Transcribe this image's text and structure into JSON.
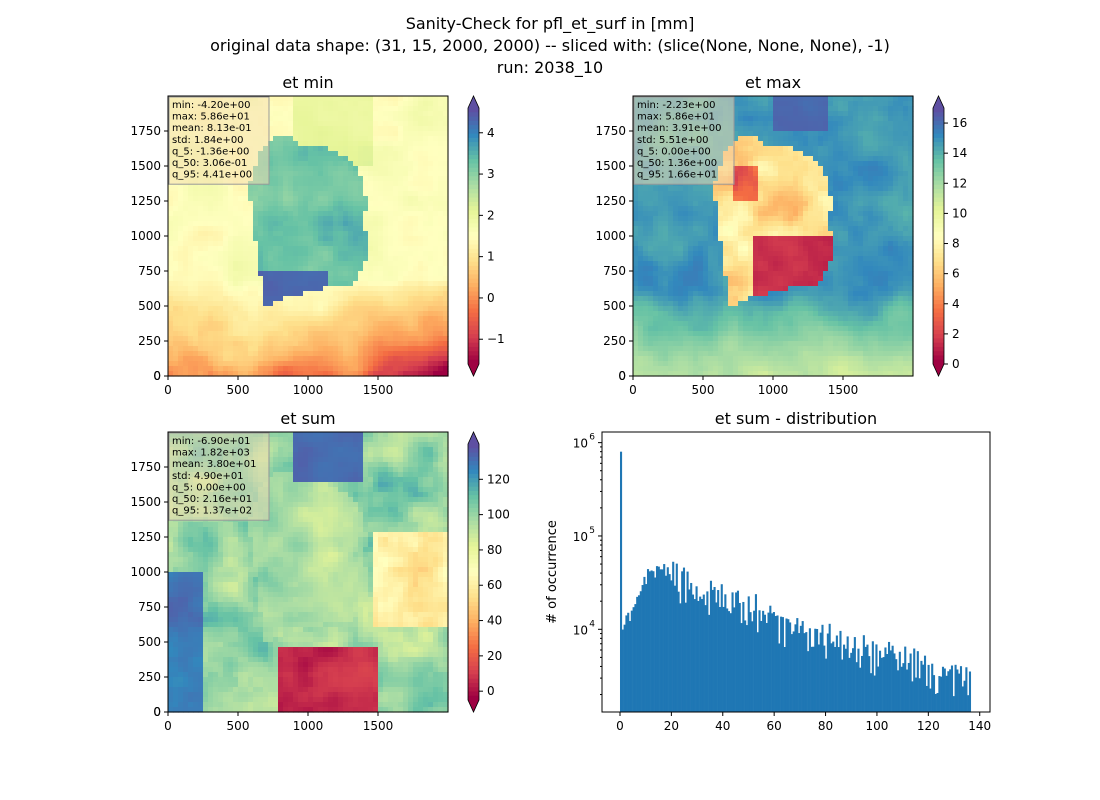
{
  "figure": {
    "title_lines": [
      "Sanity-Check for pfl_et_surf in [mm]",
      "original data shape: (31, 15, 2000, 2000) -- sliced with: (slice(None, None, None), -1)",
      "run: 2038_10"
    ]
  },
  "colors": {
    "hist_bar": "#1f77b4",
    "stats_box_fill": "#f5deb3",
    "spectral": [
      "#9e0142",
      "#d53e4f",
      "#f46d43",
      "#fdae61",
      "#fee08b",
      "#ffffbf",
      "#e6f598",
      "#abdda4",
      "#66c2a5",
      "#3288bd",
      "#5e4fa2"
    ]
  },
  "chart_data": [
    {
      "type": "heatmap",
      "title": "et min",
      "colormap": "Spectral",
      "xlim": [
        0,
        2000
      ],
      "ylim": [
        0,
        2000
      ],
      "xticks": [
        0,
        500,
        1000,
        1500
      ],
      "yticks": [
        0,
        250,
        500,
        750,
        1000,
        1250,
        1500,
        1750
      ],
      "clim": [
        -1.6,
        4.6
      ],
      "colorbar_ticks": [
        -1,
        0,
        1,
        2,
        3,
        4
      ],
      "colorbar_extend": "both",
      "stats": [
        "min: -4.20e+00",
        "max: 5.86e+01",
        "mean: 8.13e-01",
        "std: 1.84e+00",
        "q_5: -1.36e+00",
        "q_50: 3.06e-01",
        "q_95: 4.41e+00"
      ]
    },
    {
      "type": "heatmap",
      "title": "et max",
      "colormap": "Spectral",
      "xlim": [
        0,
        2000
      ],
      "ylim": [
        0,
        2000
      ],
      "xticks": [
        0,
        500,
        1000,
        1500
      ],
      "yticks": [
        0,
        250,
        500,
        750,
        1000,
        1250,
        1500,
        1750
      ],
      "clim": [
        0,
        17
      ],
      "colorbar_ticks": [
        0,
        2,
        4,
        6,
        8,
        10,
        12,
        14,
        16
      ],
      "colorbar_extend": "both",
      "stats": [
        "min: -2.23e+00",
        "max: 5.86e+01",
        "mean: 3.91e+00",
        "std: 5.51e+00",
        "q_5: 0.00e+00",
        "q_50: 1.36e+00",
        "q_95: 1.66e+01"
      ]
    },
    {
      "type": "heatmap",
      "title": "et sum",
      "colormap": "Spectral",
      "xlim": [
        0,
        2000
      ],
      "ylim": [
        0,
        2000
      ],
      "xticks": [
        0,
        500,
        1000,
        1500
      ],
      "yticks": [
        0,
        250,
        500,
        750,
        1000,
        1250,
        1500,
        1750
      ],
      "clim": [
        -5,
        140
      ],
      "colorbar_ticks": [
        0,
        20,
        40,
        60,
        80,
        100,
        120
      ],
      "colorbar_extend": "both",
      "stats": [
        "min: -6.90e+01",
        "max: 1.82e+03",
        "mean: 3.80e+01",
        "std: 4.90e+01",
        "q_5: 0.00e+00",
        "q_50: 2.16e+01",
        "q_95: 1.37e+02"
      ]
    },
    {
      "type": "bar",
      "title": "et sum - distribution",
      "ylabel": "# of occurrence",
      "yscale": "log",
      "xlim": [
        -7,
        144
      ],
      "ylim": [
        1300,
        1300000
      ],
      "xticks": [
        0,
        20,
        40,
        60,
        80,
        100,
        120,
        140
      ],
      "yticks": [
        10000,
        100000,
        1000000
      ],
      "ytick_labels": [
        [
          "10",
          "4"
        ],
        [
          "10",
          "5"
        ],
        [
          "10",
          "6"
        ]
      ],
      "bin_width": 0.7,
      "control_points": [
        [
          0,
          800000
        ],
        [
          0.7,
          9500
        ],
        [
          2,
          12000
        ],
        [
          4,
          15000
        ],
        [
          6,
          18000
        ],
        [
          8,
          26000
        ],
        [
          10,
          38000
        ],
        [
          14,
          44000
        ],
        [
          18,
          42000
        ],
        [
          22,
          36000
        ],
        [
          26,
          30000
        ],
        [
          30,
          26000
        ],
        [
          36,
          23000
        ],
        [
          42,
          22000
        ],
        [
          48,
          20000
        ],
        [
          52,
          17500
        ],
        [
          56,
          14000
        ],
        [
          60,
          12000
        ],
        [
          65,
          11000
        ],
        [
          70,
          10000
        ],
        [
          75,
          9500
        ],
        [
          80,
          8500
        ],
        [
          85,
          7500
        ],
        [
          90,
          6500
        ],
        [
          95,
          6000
        ],
        [
          100,
          5500
        ],
        [
          105,
          5000
        ],
        [
          110,
          4700
        ],
        [
          115,
          4300
        ],
        [
          120,
          3700
        ],
        [
          125,
          3300
        ],
        [
          130,
          3000
        ],
        [
          136,
          3400
        ]
      ]
    }
  ]
}
